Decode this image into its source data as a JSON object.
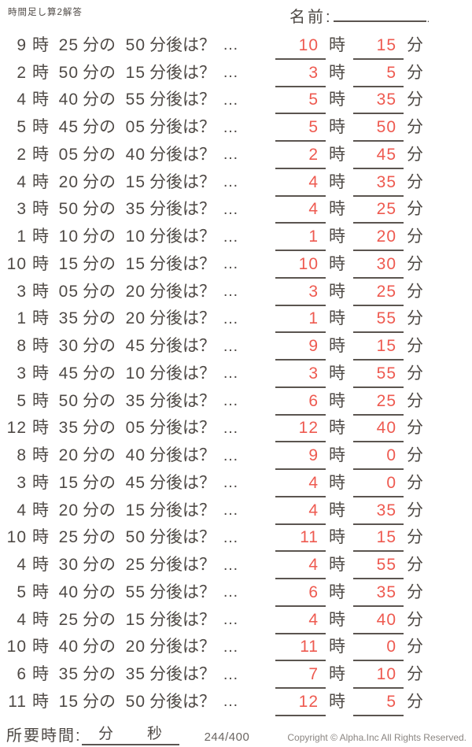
{
  "header": {
    "title": "時間足し算2解答",
    "name_label": "名前:",
    "name_line_period": "."
  },
  "labels": {
    "hour_unit": "時",
    "minute_of": "分の",
    "after_question": "分後は？",
    "ellipsis": "…",
    "minute_unit": "分"
  },
  "problems": [
    {
      "q_hour": "9",
      "q_min": "25",
      "q_add": "50",
      "a_hour": "10",
      "a_min": "15"
    },
    {
      "q_hour": "2",
      "q_min": "50",
      "q_add": "15",
      "a_hour": "3",
      "a_min": "5"
    },
    {
      "q_hour": "4",
      "q_min": "40",
      "q_add": "55",
      "a_hour": "5",
      "a_min": "35"
    },
    {
      "q_hour": "5",
      "q_min": "45",
      "q_add": "05",
      "a_hour": "5",
      "a_min": "50"
    },
    {
      "q_hour": "2",
      "q_min": "05",
      "q_add": "40",
      "a_hour": "2",
      "a_min": "45"
    },
    {
      "q_hour": "4",
      "q_min": "20",
      "q_add": "15",
      "a_hour": "4",
      "a_min": "35"
    },
    {
      "q_hour": "3",
      "q_min": "50",
      "q_add": "35",
      "a_hour": "4",
      "a_min": "25"
    },
    {
      "q_hour": "1",
      "q_min": "10",
      "q_add": "10",
      "a_hour": "1",
      "a_min": "20"
    },
    {
      "q_hour": "10",
      "q_min": "15",
      "q_add": "15",
      "a_hour": "10",
      "a_min": "30"
    },
    {
      "q_hour": "3",
      "q_min": "05",
      "q_add": "20",
      "a_hour": "3",
      "a_min": "25"
    },
    {
      "q_hour": "1",
      "q_min": "35",
      "q_add": "20",
      "a_hour": "1",
      "a_min": "55"
    },
    {
      "q_hour": "8",
      "q_min": "30",
      "q_add": "45",
      "a_hour": "9",
      "a_min": "15"
    },
    {
      "q_hour": "3",
      "q_min": "45",
      "q_add": "10",
      "a_hour": "3",
      "a_min": "55"
    },
    {
      "q_hour": "5",
      "q_min": "50",
      "q_add": "35",
      "a_hour": "6",
      "a_min": "25"
    },
    {
      "q_hour": "12",
      "q_min": "35",
      "q_add": "05",
      "a_hour": "12",
      "a_min": "40"
    },
    {
      "q_hour": "8",
      "q_min": "20",
      "q_add": "40",
      "a_hour": "9",
      "a_min": "0"
    },
    {
      "q_hour": "3",
      "q_min": "15",
      "q_add": "45",
      "a_hour": "4",
      "a_min": "0"
    },
    {
      "q_hour": "4",
      "q_min": "20",
      "q_add": "15",
      "a_hour": "4",
      "a_min": "35"
    },
    {
      "q_hour": "10",
      "q_min": "25",
      "q_add": "50",
      "a_hour": "11",
      "a_min": "15"
    },
    {
      "q_hour": "4",
      "q_min": "30",
      "q_add": "25",
      "a_hour": "4",
      "a_min": "55"
    },
    {
      "q_hour": "5",
      "q_min": "40",
      "q_add": "55",
      "a_hour": "6",
      "a_min": "35"
    },
    {
      "q_hour": "4",
      "q_min": "25",
      "q_add": "15",
      "a_hour": "4",
      "a_min": "40"
    },
    {
      "q_hour": "10",
      "q_min": "40",
      "q_add": "20",
      "a_hour": "11",
      "a_min": "0"
    },
    {
      "q_hour": "6",
      "q_min": "35",
      "q_add": "35",
      "a_hour": "7",
      "a_min": "10"
    },
    {
      "q_hour": "11",
      "q_min": "15",
      "q_add": "50",
      "a_hour": "12",
      "a_min": "5"
    }
  ],
  "footer": {
    "elapsed_label": "所要時間:",
    "minute_label": "分",
    "second_label": "秒",
    "page_counter": "244/400",
    "copyright": "Copyright ©  Alpha.Inc All Rights Reserved."
  },
  "colors": {
    "answer_red": "#ee5a50",
    "ink": "#4f4a46",
    "underline": "#5b5550",
    "muted_gray": "#6b6662",
    "copyright_gray": "#8b8682"
  }
}
